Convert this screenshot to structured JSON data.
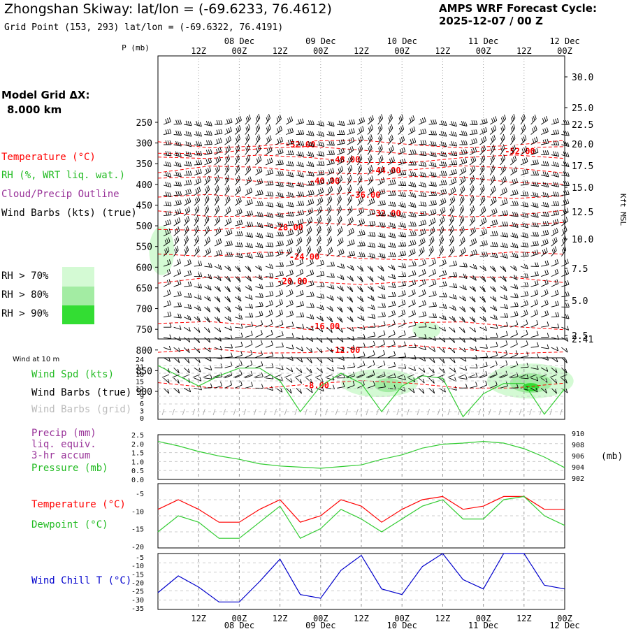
{
  "header": {
    "title": "Zhongshan Skiway:  lat/lon = (-69.6233, 76.4612)",
    "grid_point": "Grid Point (153, 293) lat/lon = (-69.6322, 76.4191)",
    "cycle_line1": "AMPS WRF Forecast Cycle:",
    "cycle_line2": "2025-12-07 / 00  Z"
  },
  "time_axis": {
    "ticks": [
      "12Z",
      "00Z",
      "12Z",
      "00Z",
      "12Z",
      "00Z",
      "12Z",
      "00Z",
      "12Z",
      "00Z"
    ],
    "dates": [
      "08 Dec",
      "09 Dec",
      "10 Dec",
      "11 Dec",
      "12 Dec"
    ]
  },
  "legend": {
    "model_grid_label": "Model Grid ΔX:",
    "model_grid_value": "8.000 km",
    "temperature": "Temperature (°C)",
    "rh": "RH (%, WRT liq. wat.)",
    "cloud": "Cloud/Precip Outline",
    "wind_barbs": "Wind Barbs (kts) (true)",
    "rh70": "RH > 70%",
    "rh80": "RH > 80%",
    "rh90": "RH > 90%",
    "rh70_color": "#d4fad4",
    "rh80_color": "#a3eca3",
    "rh90_color": "#33dd33"
  },
  "upper_panel": {
    "p_axis_label": "P (mb)",
    "kft_label": "Kft MSL",
    "pressure_levels": [
      "250",
      "300",
      "350",
      "400",
      "450",
      "500",
      "550",
      "600",
      "650",
      "700",
      "750",
      "800",
      "850",
      "900"
    ],
    "height_levels": [
      "30.0",
      "25.0",
      "22.5",
      "20.0",
      "17.5",
      "15.0",
      "12.5",
      "10.0",
      "7.5",
      "5.0",
      "2.5",
      "2.41"
    ],
    "isotherms": [
      {
        "label": "-52.00",
        "p": 302,
        "x": 0.35
      },
      {
        "label": "-52.00",
        "p": 318,
        "x": 0.89
      },
      {
        "label": "-48.00",
        "p": 339,
        "x": 0.46
      },
      {
        "label": "-44.00",
        "p": 365,
        "x": 0.56
      },
      {
        "label": "-40.00",
        "p": 390,
        "x": 0.41
      },
      {
        "label": "-36.00",
        "p": 424,
        "x": 0.51
      },
      {
        "label": "-32.00",
        "p": 469,
        "x": 0.56
      },
      {
        "label": "-28.00",
        "p": 502,
        "x": 0.32
      },
      {
        "label": "-24.00",
        "p": 573,
        "x": 0.36
      },
      {
        "label": "-20.00",
        "p": 632,
        "x": 0.33
      },
      {
        "label": "-16.00",
        "p": 741,
        "x": 0.41
      },
      {
        "label": "-12.00",
        "p": 799,
        "x": 0.46
      },
      {
        "label": "-8.00",
        "p": 884,
        "x": 0.39
      }
    ]
  },
  "wind_panel": {
    "title": "Wind at 10 m",
    "spd_label": "Wind Spd (kts)",
    "barbs_true_label": "Wind Barbs (true)",
    "barbs_grid_label": "Wind Barbs (grid)",
    "ticks": [
      "24",
      "21",
      "18",
      "15",
      "12",
      "9",
      "6",
      "3",
      "0"
    ]
  },
  "precip_panel": {
    "precip_label": "Precip (mm)",
    "liq_label": "liq. equiv.",
    "accum_label": "3-hr accum",
    "pressure_label": "Pressure (mb)",
    "left_ticks": [
      "2.5",
      "2.0",
      "1.5",
      "1.0",
      "0.5",
      "0.0"
    ],
    "right_ticks": [
      "910",
      "908",
      "906",
      "904",
      "902"
    ],
    "mb_label": "(mb)"
  },
  "temp_panel": {
    "temp_label": "Temperature (°C)",
    "dew_label": "Dewpoint (°C)",
    "ticks": [
      "-5",
      "-10",
      "-15",
      "-20"
    ]
  },
  "chill_panel": {
    "label": "Wind Chill T (°C)",
    "ticks": [
      "-5",
      "-10",
      "-15",
      "-20",
      "-25",
      "-30",
      "-35"
    ]
  },
  "colors": {
    "temperature": "#ff0000",
    "rh": "#33cc33",
    "cloud": "#993399",
    "wind": "#000000",
    "grid_barbs": "#aaaaaa",
    "wind_chill": "#0000cc"
  },
  "chart_data": [
    {
      "type": "line",
      "title": "Wind Spd (kts) at 10 m",
      "x_hours": [
        0,
        6,
        12,
        18,
        24,
        30,
        36,
        42,
        48,
        54,
        60,
        66,
        72,
        78,
        84,
        90,
        96,
        102,
        108,
        114,
        120
      ],
      "ylim": [
        0,
        24
      ],
      "series": [
        {
          "name": "Wind Spd (kts)",
          "values": [
            21,
            17,
            13,
            17,
            20,
            20,
            15,
            3,
            13,
            18,
            14,
            3,
            13,
            17,
            16,
            1,
            10,
            14,
            14,
            2,
            12
          ]
        }
      ]
    },
    {
      "type": "line",
      "title": "Pressure (mb)",
      "x_hours": [
        0,
        6,
        12,
        18,
        24,
        30,
        36,
        42,
        48,
        54,
        60,
        66,
        72,
        78,
        84,
        90,
        96,
        102,
        108,
        114,
        120
      ],
      "ylim": [
        902,
        910
      ],
      "series": [
        {
          "name": "Pressure (mb)",
          "values": [
            908.8,
            908,
            907,
            906.2,
            905.6,
            904.8,
            904.4,
            904.2,
            904,
            904.3,
            904.6,
            905.6,
            906.4,
            907.6,
            908.3,
            908.5,
            908.8,
            908.5,
            907.5,
            906.0,
            904.1
          ]
        }
      ]
    },
    {
      "type": "line",
      "title": "Temperature and Dewpoint (°C)",
      "x_hours": [
        0,
        6,
        12,
        18,
        24,
        30,
        36,
        42,
        48,
        54,
        60,
        66,
        72,
        78,
        84,
        90,
        96,
        102,
        108,
        114,
        120
      ],
      "ylim": [
        -20,
        0
      ],
      "series": [
        {
          "name": "Temperature (°C)",
          "values": [
            -8,
            -5,
            -8,
            -12,
            -12,
            -8,
            -5,
            -12,
            -10,
            -5,
            -7,
            -12,
            -8,
            -5,
            -4,
            -8,
            -7,
            -4,
            -4,
            -8,
            -8
          ]
        },
        {
          "name": "Dewpoint (°C)",
          "values": [
            -15,
            -10,
            -12,
            -17,
            -17,
            -12,
            -7,
            -17,
            -14,
            -8,
            -11,
            -15,
            -11,
            -7,
            -5,
            -11,
            -11,
            -5,
            -4,
            -10,
            -13
          ]
        }
      ]
    },
    {
      "type": "line",
      "title": "Wind Chill T (°C)",
      "x_hours": [
        0,
        6,
        12,
        18,
        24,
        30,
        36,
        42,
        48,
        54,
        60,
        66,
        72,
        78,
        84,
        90,
        96,
        102,
        108,
        114,
        120
      ],
      "ylim": [
        -35,
        -5
      ],
      "series": [
        {
          "name": "Wind Chill T (°C)",
          "values": [
            -26,
            -17,
            -23,
            -31,
            -31,
            -20,
            -8,
            -27,
            -29,
            -14,
            -6,
            -24,
            -27,
            -12,
            -5,
            -19,
            -24,
            -5,
            -5,
            -22,
            -24
          ]
        }
      ]
    }
  ]
}
